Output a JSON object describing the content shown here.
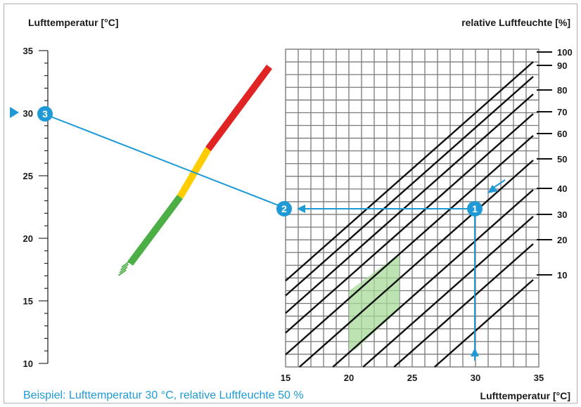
{
  "title_left": "Lufttemperatur [°C]",
  "title_right": "relative Luftfeuchte [%]",
  "xlabel": "Lufttemperatur [°C]",
  "caption": "Beispiel: Lufttemperatur 30 °C, relative Luftfeuchte 50 %",
  "colors": {
    "frame": "#b0b0b0",
    "grid": "#7a7a7a",
    "iso": "#111111",
    "accent": "#1f9ad6",
    "comfort": "#a8d99a",
    "scale_green": "#4caf45",
    "scale_yellow": "#ffcc00",
    "scale_red": "#e02424"
  },
  "chart_data": {
    "type": "diagram",
    "left_scale": {
      "ticks": [
        "35",
        "30",
        "25",
        "20",
        "15",
        "10"
      ],
      "ylim": [
        10,
        35
      ],
      "marker_value": "30"
    },
    "x_axis": {
      "ticks": [
        "15",
        "20",
        "25",
        "30",
        "35"
      ],
      "xlim": [
        15,
        35
      ]
    },
    "rh_labels": [
      "100",
      "90",
      "80",
      "70",
      "60",
      "50",
      "40",
      "30",
      "20",
      "10"
    ],
    "example": {
      "air_temperature": 30,
      "relative_humidity": 50,
      "result": 22.5
    },
    "steps": [
      "1",
      "2",
      "3"
    ],
    "colored_scale": [
      "green",
      "yellow",
      "red"
    ]
  }
}
